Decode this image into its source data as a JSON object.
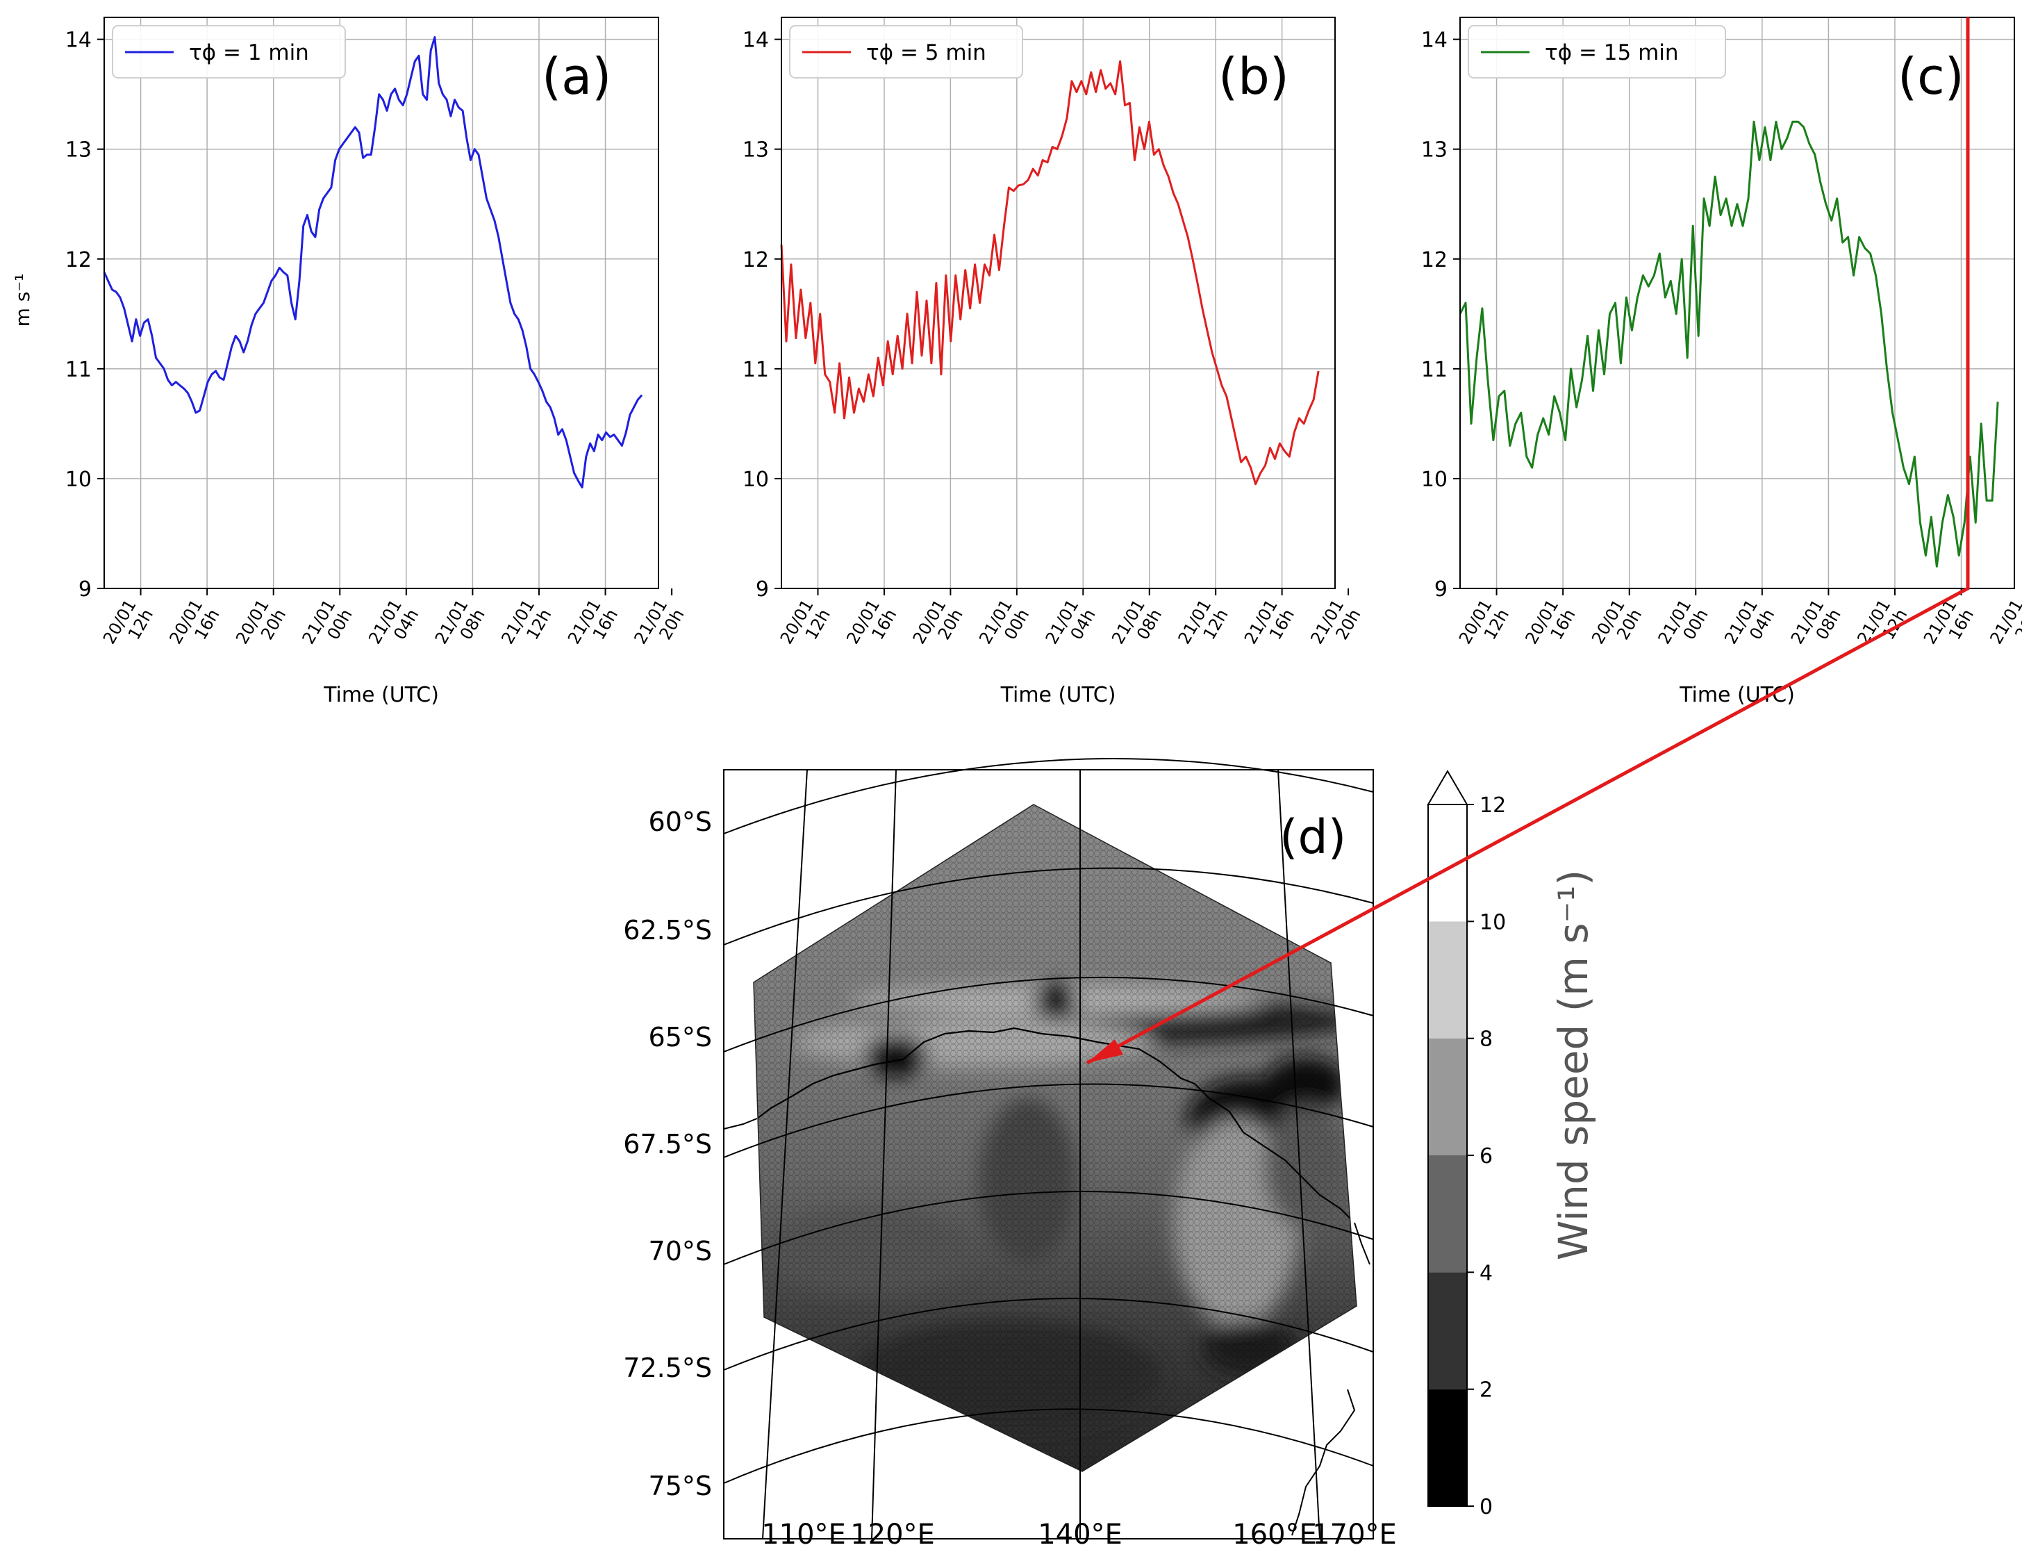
{
  "time_ticks": [
    "20/01 12h",
    "20/01 16h",
    "20/01 20h",
    "21/01 00h",
    "21/01 04h",
    "21/01 08h",
    "21/01 12h",
    "21/01 16h",
    "21/01 20h"
  ],
  "ylabel": "m s⁻¹",
  "xlabel": "Time (UTC)",
  "chart_data": [
    {
      "type": "line",
      "panel_label": "(a)",
      "legend": "τϕ = 1 min",
      "color": "#1f1fe0",
      "xlabel": "Time (UTC)",
      "ylabel": "m s⁻¹",
      "ylim": [
        9,
        14.2
      ],
      "yticks": [
        9,
        10,
        11,
        12,
        13,
        14
      ],
      "x_start_hour": 9.8,
      "grid": true,
      "legend_position": "top-left",
      "values": [
        11.88,
        11.8,
        11.72,
        11.7,
        11.65,
        11.55,
        11.4,
        11.25,
        11.45,
        11.3,
        11.42,
        11.45,
        11.3,
        11.1,
        11.05,
        11.0,
        10.9,
        10.85,
        10.88,
        10.85,
        10.82,
        10.78,
        10.7,
        10.6,
        10.62,
        10.75,
        10.88,
        10.95,
        10.98,
        10.92,
        10.9,
        11.05,
        11.2,
        11.3,
        11.25,
        11.15,
        11.25,
        11.4,
        11.5,
        11.55,
        11.6,
        11.7,
        11.8,
        11.85,
        11.92,
        11.88,
        11.85,
        11.6,
        11.45,
        11.8,
        12.3,
        12.4,
        12.25,
        12.2,
        12.45,
        12.55,
        12.6,
        12.65,
        12.9,
        13.0,
        13.05,
        13.1,
        13.15,
        13.2,
        13.15,
        12.92,
        12.95,
        12.95,
        13.2,
        13.5,
        13.45,
        13.35,
        13.5,
        13.55,
        13.45,
        13.4,
        13.5,
        13.65,
        13.8,
        13.85,
        13.5,
        13.45,
        13.9,
        14.02,
        13.6,
        13.5,
        13.45,
        13.3,
        13.45,
        13.38,
        13.35,
        13.1,
        12.9,
        13.0,
        12.95,
        12.75,
        12.55,
        12.45,
        12.35,
        12.2,
        12.0,
        11.8,
        11.6,
        11.5,
        11.45,
        11.35,
        11.2,
        11.0,
        10.95,
        10.88,
        10.8,
        10.7,
        10.65,
        10.55,
        10.4,
        10.45,
        10.35,
        10.2,
        10.05,
        9.98,
        9.92,
        10.2,
        10.32,
        10.25,
        10.4,
        10.35,
        10.42,
        10.38,
        10.4,
        10.35,
        10.3,
        10.42,
        10.58,
        10.65,
        10.72,
        10.76
      ]
    },
    {
      "type": "line",
      "panel_label": "(b)",
      "legend": "τϕ = 5 min",
      "color": "#e01f1f",
      "xlabel": "Time (UTC)",
      "ylabel": "",
      "ylim": [
        9,
        14.2
      ],
      "yticks": [
        9,
        10,
        11,
        12,
        13,
        14
      ],
      "x_start_hour": 9.8,
      "grid": true,
      "legend_position": "top-left",
      "values": [
        12.13,
        11.25,
        11.95,
        11.28,
        11.72,
        11.28,
        11.6,
        11.05,
        11.5,
        10.95,
        10.88,
        10.6,
        11.05,
        10.55,
        10.92,
        10.6,
        10.82,
        10.7,
        10.95,
        10.75,
        11.1,
        10.85,
        11.25,
        10.95,
        11.3,
        11.0,
        11.5,
        11.05,
        11.7,
        11.12,
        11.62,
        11.05,
        11.78,
        10.95,
        11.85,
        11.25,
        11.85,
        11.45,
        11.9,
        11.55,
        11.95,
        11.6,
        11.95,
        11.85,
        12.22,
        11.9,
        12.3,
        12.65,
        12.62,
        12.67,
        12.68,
        12.72,
        12.82,
        12.76,
        12.9,
        12.88,
        13.02,
        13.0,
        13.12,
        13.28,
        13.62,
        13.52,
        13.62,
        13.5,
        13.7,
        13.52,
        13.72,
        13.55,
        13.6,
        13.5,
        13.8,
        13.4,
        13.42,
        12.9,
        13.2,
        13.0,
        13.25,
        12.95,
        13.0,
        12.85,
        12.75,
        12.6,
        12.5,
        12.35,
        12.2,
        12.0,
        11.78,
        11.55,
        11.35,
        11.15,
        11.0,
        10.85,
        10.75,
        10.55,
        10.35,
        10.15,
        10.2,
        10.1,
        9.95,
        10.05,
        10.12,
        10.28,
        10.18,
        10.32,
        10.25,
        10.2,
        10.42,
        10.55,
        10.5,
        10.62,
        10.72,
        10.98
      ]
    },
    {
      "type": "line",
      "panel_label": "(c)",
      "legend": "τϕ = 15 min",
      "color": "#1a7f1a",
      "xlabel": "Time (UTC)",
      "ylabel": "",
      "ylim": [
        9,
        14.2
      ],
      "yticks": [
        9,
        10,
        11,
        12,
        13,
        14
      ],
      "x_start_hour": 9.8,
      "grid": true,
      "legend_position": "top-left",
      "values": [
        11.5,
        11.6,
        10.5,
        11.1,
        11.55,
        10.9,
        10.35,
        10.75,
        10.8,
        10.3,
        10.5,
        10.6,
        10.2,
        10.1,
        10.4,
        10.55,
        10.4,
        10.75,
        10.6,
        10.35,
        11.0,
        10.65,
        10.9,
        11.3,
        10.8,
        11.35,
        10.95,
        11.5,
        11.6,
        11.05,
        11.65,
        11.35,
        11.65,
        11.85,
        11.75,
        11.85,
        12.05,
        11.65,
        11.8,
        11.5,
        12.0,
        11.1,
        12.3,
        11.3,
        12.55,
        12.3,
        12.75,
        12.4,
        12.55,
        12.3,
        12.5,
        12.3,
        12.55,
        13.25,
        12.9,
        13.2,
        12.9,
        13.25,
        13.0,
        13.1,
        13.25,
        13.25,
        13.2,
        13.05,
        12.95,
        12.7,
        12.5,
        12.35,
        12.55,
        12.15,
        12.2,
        11.85,
        12.2,
        12.1,
        12.05,
        11.85,
        11.5,
        11.0,
        10.6,
        10.35,
        10.1,
        9.95,
        10.2,
        9.6,
        9.3,
        9.65,
        9.2,
        9.6,
        9.85,
        9.65,
        9.3,
        9.6,
        10.2,
        9.6,
        10.5,
        9.8,
        9.8,
        10.7
      ]
    },
    {
      "type": "heatmap",
      "panel_label": "(d)",
      "lat_ticks": [
        "60°S",
        "62.5°S",
        "65°S",
        "67.5°S",
        "70°S",
        "72.5°S",
        "75°S"
      ],
      "lon_ticks": [
        "110°E",
        "120°E",
        "140°E",
        "160°E",
        "170°E"
      ],
      "colorbar": {
        "label": "Wind speed (m s⁻¹)",
        "ticks": [
          0,
          2,
          4,
          6,
          8,
          10,
          12
        ],
        "bins": [
          {
            "from": 0,
            "to": 2,
            "color": "#000000"
          },
          {
            "from": 2,
            "to": 4,
            "color": "#333333"
          },
          {
            "from": 4,
            "to": 6,
            "color": "#666666"
          },
          {
            "from": 6,
            "to": 8,
            "color": "#999999"
          },
          {
            "from": 8,
            "to": 10,
            "color": "#cccccc"
          },
          {
            "from": 10,
            "to": 12,
            "color": "#ffffff"
          }
        ],
        "extend": "max"
      }
    }
  ],
  "annotation_color": "#e31a1c"
}
